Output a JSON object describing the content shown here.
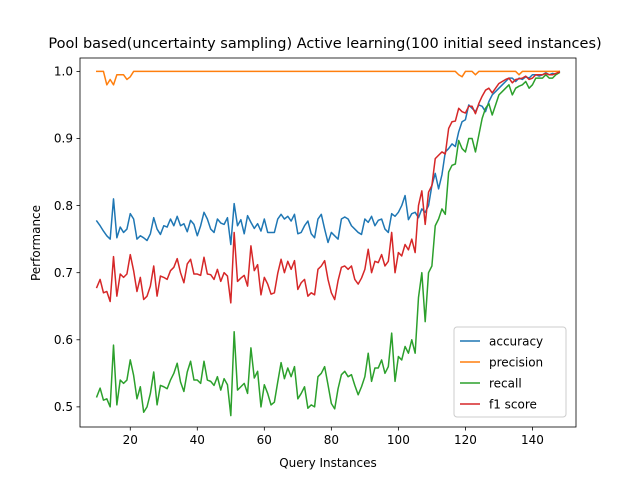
{
  "chart_data": {
    "type": "line",
    "title": "Pool based(uncertainty sampling) Active learning(100 initial seed instances)",
    "xlabel": "Query Instances",
    "ylabel": "Performance",
    "xlim": [
      5,
      153
    ],
    "ylim": [
      0.47,
      1.02
    ],
    "xticks": [
      20,
      40,
      60,
      80,
      100,
      120,
      140
    ],
    "yticks": [
      0.5,
      0.6,
      0.7,
      0.8,
      0.9,
      1.0
    ],
    "ytick_labels": [
      "0.5",
      "0.6",
      "0.7",
      "0.8",
      "0.9",
      "1.0"
    ],
    "grid": false,
    "legend_position": "lower right",
    "x": [
      10,
      11,
      12,
      13,
      14,
      15,
      16,
      17,
      18,
      19,
      20,
      21,
      22,
      23,
      24,
      25,
      26,
      27,
      28,
      29,
      30,
      31,
      32,
      33,
      34,
      35,
      36,
      37,
      38,
      39,
      40,
      41,
      42,
      43,
      44,
      45,
      46,
      47,
      48,
      49,
      50,
      51,
      52,
      53,
      54,
      55,
      56,
      57,
      58,
      59,
      60,
      61,
      62,
      63,
      64,
      65,
      66,
      67,
      68,
      69,
      70,
      71,
      72,
      73,
      74,
      75,
      76,
      77,
      78,
      79,
      80,
      81,
      82,
      83,
      84,
      85,
      86,
      87,
      88,
      89,
      90,
      91,
      92,
      93,
      94,
      95,
      96,
      97,
      98,
      99,
      100,
      101,
      102,
      103,
      104,
      105,
      106,
      107,
      108,
      109,
      110,
      111,
      112,
      113,
      114,
      115,
      116,
      117,
      118,
      119,
      120,
      121,
      122,
      123,
      124,
      125,
      126,
      127,
      128,
      129,
      130,
      131,
      132,
      133,
      134,
      135,
      136,
      137,
      138,
      139,
      140,
      141,
      142,
      143,
      144,
      145,
      146,
      147,
      148
    ],
    "series": [
      {
        "name": "accuracy",
        "color": "#1f77b4",
        "values": [
          0.777,
          0.77,
          0.762,
          0.755,
          0.75,
          0.81,
          0.752,
          0.768,
          0.76,
          0.765,
          0.788,
          0.78,
          0.75,
          0.755,
          0.752,
          0.748,
          0.758,
          0.782,
          0.765,
          0.757,
          0.77,
          0.768,
          0.78,
          0.77,
          0.784,
          0.77,
          0.773,
          0.761,
          0.778,
          0.772,
          0.755,
          0.77,
          0.79,
          0.78,
          0.765,
          0.76,
          0.78,
          0.774,
          0.772,
          0.782,
          0.742,
          0.803,
          0.77,
          0.779,
          0.758,
          0.785,
          0.775,
          0.766,
          0.773,
          0.762,
          0.78,
          0.76,
          0.76,
          0.76,
          0.78,
          0.787,
          0.78,
          0.784,
          0.777,
          0.787,
          0.758,
          0.76,
          0.77,
          0.777,
          0.758,
          0.752,
          0.78,
          0.787,
          0.765,
          0.745,
          0.76,
          0.755,
          0.75,
          0.78,
          0.783,
          0.78,
          0.77,
          0.765,
          0.76,
          0.757,
          0.78,
          0.775,
          0.784,
          0.77,
          0.778,
          0.78,
          0.765,
          0.76,
          0.788,
          0.784,
          0.79,
          0.8,
          0.815,
          0.779,
          0.788,
          0.79,
          0.782,
          0.795,
          0.79,
          0.8,
          0.83,
          0.848,
          0.825,
          0.846,
          0.88,
          0.885,
          0.892,
          0.888,
          0.91,
          0.925,
          0.928,
          0.95,
          0.945,
          0.94,
          0.95,
          0.948,
          0.94,
          0.955,
          0.965,
          0.97,
          0.975,
          0.98,
          0.985,
          0.99,
          0.99,
          0.985,
          0.99,
          0.988,
          0.992,
          0.99,
          0.995,
          0.995,
          0.993,
          0.995,
          0.998,
          0.995,
          0.997,
          0.996,
          1.0
        ]
      },
      {
        "name": "precision",
        "color": "#ff7f0e",
        "values": [
          1.0,
          1.0,
          1.0,
          0.98,
          0.988,
          0.98,
          0.995,
          0.995,
          0.995,
          0.988,
          0.992,
          1.0,
          1.0,
          1.0,
          1.0,
          1.0,
          1.0,
          1.0,
          1.0,
          1.0,
          1.0,
          1.0,
          1.0,
          1.0,
          1.0,
          1.0,
          1.0,
          1.0,
          1.0,
          1.0,
          1.0,
          1.0,
          1.0,
          1.0,
          1.0,
          1.0,
          1.0,
          1.0,
          1.0,
          1.0,
          1.0,
          1.0,
          1.0,
          1.0,
          1.0,
          1.0,
          1.0,
          1.0,
          1.0,
          1.0,
          1.0,
          1.0,
          1.0,
          1.0,
          1.0,
          1.0,
          1.0,
          1.0,
          1.0,
          1.0,
          1.0,
          1.0,
          1.0,
          1.0,
          1.0,
          1.0,
          1.0,
          1.0,
          1.0,
          1.0,
          1.0,
          1.0,
          1.0,
          1.0,
          1.0,
          1.0,
          1.0,
          1.0,
          1.0,
          1.0,
          1.0,
          1.0,
          1.0,
          1.0,
          1.0,
          1.0,
          1.0,
          1.0,
          1.0,
          1.0,
          1.0,
          1.0,
          1.0,
          1.0,
          1.0,
          1.0,
          1.0,
          1.0,
          1.0,
          1.0,
          1.0,
          1.0,
          1.0,
          1.0,
          1.0,
          1.0,
          1.0,
          1.0,
          0.995,
          0.992,
          1.0,
          1.0,
          1.0,
          0.995,
          1.0,
          1.0,
          1.0,
          1.0,
          1.0,
          1.0,
          1.0,
          1.0,
          1.0,
          1.0,
          1.0,
          1.0,
          0.995,
          1.0,
          1.0,
          1.0,
          1.0,
          1.0,
          1.0,
          1.0,
          1.0,
          1.0,
          1.0,
          1.0,
          1.0
        ]
      },
      {
        "name": "recall",
        "color": "#2ca02c",
        "values": [
          0.515,
          0.528,
          0.51,
          0.512,
          0.5,
          0.592,
          0.503,
          0.54,
          0.535,
          0.54,
          0.57,
          0.547,
          0.512,
          0.53,
          0.492,
          0.5,
          0.52,
          0.552,
          0.503,
          0.532,
          0.53,
          0.527,
          0.54,
          0.55,
          0.565,
          0.537,
          0.523,
          0.552,
          0.568,
          0.54,
          0.54,
          0.535,
          0.568,
          0.54,
          0.538,
          0.532,
          0.545,
          0.525,
          0.542,
          0.533,
          0.487,
          0.612,
          0.525,
          0.53,
          0.535,
          0.52,
          0.588,
          0.543,
          0.553,
          0.5,
          0.533,
          0.52,
          0.503,
          0.507,
          0.537,
          0.566,
          0.542,
          0.558,
          0.545,
          0.56,
          0.512,
          0.52,
          0.53,
          0.498,
          0.503,
          0.5,
          0.545,
          0.55,
          0.56,
          0.533,
          0.505,
          0.497,
          0.527,
          0.548,
          0.553,
          0.545,
          0.548,
          0.532,
          0.518,
          0.53,
          0.545,
          0.58,
          0.538,
          0.558,
          0.558,
          0.57,
          0.55,
          0.56,
          0.61,
          0.538,
          0.575,
          0.57,
          0.59,
          0.58,
          0.6,
          0.58,
          0.663,
          0.7,
          0.627,
          0.7,
          0.71,
          0.77,
          0.78,
          0.795,
          0.787,
          0.85,
          0.86,
          0.862,
          0.897,
          0.885,
          0.88,
          0.9,
          0.9,
          0.88,
          0.905,
          0.93,
          0.945,
          0.952,
          0.935,
          0.95,
          0.965,
          0.97,
          0.975,
          0.98,
          0.965,
          0.975,
          0.978,
          0.98,
          0.985,
          0.975,
          0.98,
          0.99,
          0.99,
          0.99,
          0.995,
          0.99,
          0.99,
          0.995,
          0.998
        ]
      },
      {
        "name": "f1 score",
        "color": "#d62728",
        "values": [
          0.678,
          0.69,
          0.67,
          0.672,
          0.657,
          0.724,
          0.665,
          0.698,
          0.693,
          0.698,
          0.727,
          0.703,
          0.672,
          0.693,
          0.66,
          0.665,
          0.68,
          0.71,
          0.665,
          0.695,
          0.693,
          0.69,
          0.703,
          0.708,
          0.721,
          0.7,
          0.685,
          0.713,
          0.72,
          0.698,
          0.698,
          0.696,
          0.723,
          0.698,
          0.697,
          0.69,
          0.705,
          0.687,
          0.7,
          0.695,
          0.655,
          0.76,
          0.687,
          0.692,
          0.696,
          0.68,
          0.74,
          0.703,
          0.712,
          0.667,
          0.693,
          0.683,
          0.668,
          0.67,
          0.699,
          0.72,
          0.7,
          0.717,
          0.705,
          0.718,
          0.675,
          0.685,
          0.69,
          0.665,
          0.67,
          0.667,
          0.705,
          0.71,
          0.718,
          0.69,
          0.67,
          0.66,
          0.688,
          0.708,
          0.71,
          0.705,
          0.71,
          0.69,
          0.683,
          0.692,
          0.705,
          0.735,
          0.7,
          0.717,
          0.715,
          0.727,
          0.71,
          0.717,
          0.76,
          0.7,
          0.73,
          0.725,
          0.742,
          0.734,
          0.75,
          0.73,
          0.8,
          0.822,
          0.772,
          0.82,
          0.83,
          0.87,
          0.875,
          0.88,
          0.877,
          0.915,
          0.925,
          0.926,
          0.945,
          0.94,
          0.938,
          0.948,
          0.948,
          0.937,
          0.952,
          0.963,
          0.972,
          0.975,
          0.968,
          0.975,
          0.982,
          0.985,
          0.988,
          0.99,
          0.983,
          0.988,
          0.989,
          0.99,
          0.993,
          0.988,
          0.99,
          0.995,
          0.995,
          0.995,
          0.997,
          0.995,
          0.995,
          0.997,
          0.999
        ]
      }
    ]
  }
}
